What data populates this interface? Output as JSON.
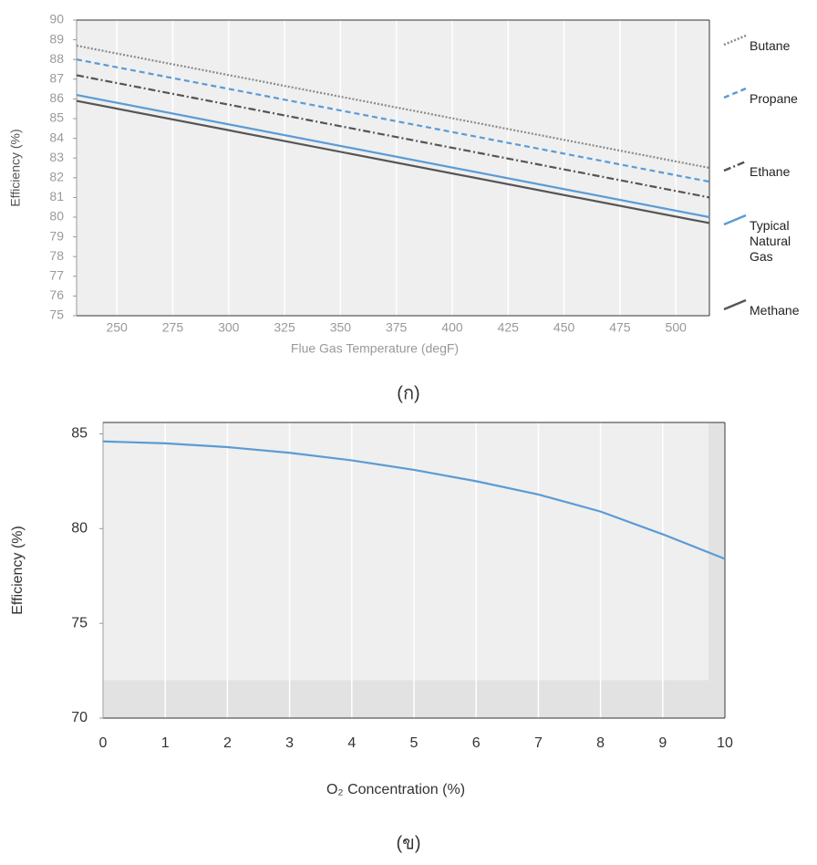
{
  "chart_data": [
    {
      "type": "line",
      "x_label": "Flue Gas Temperature (degF)",
      "y_label": "Efficiency (%)",
      "caption": "(ก)",
      "x": [
        232,
        515
      ],
      "xlim": [
        232,
        515
      ],
      "xticks": [
        250,
        275,
        300,
        325,
        350,
        375,
        400,
        425,
        450,
        475,
        500
      ],
      "ylim": [
        75,
        90
      ],
      "yticks": [
        75,
        76,
        77,
        78,
        79,
        80,
        81,
        82,
        83,
        84,
        85,
        86,
        87,
        88,
        89,
        90
      ],
      "grid": true,
      "legend": "right",
      "series": [
        {
          "name": "Butane",
          "color": "#8a8a8a",
          "style": "dotted",
          "values": [
            88.7,
            82.5
          ]
        },
        {
          "name": "Propane",
          "color": "#5b9bd5",
          "style": "dashed",
          "values": [
            88.0,
            81.8
          ]
        },
        {
          "name": "Ethane",
          "color": "#555555",
          "style": "dashdot",
          "values": [
            87.2,
            81.0
          ]
        },
        {
          "name": "Typical Natural Gas",
          "color": "#5b9bd5",
          "style": "solid",
          "values": [
            86.2,
            80.0
          ]
        },
        {
          "name": "Methane",
          "color": "#555555",
          "style": "solid",
          "values": [
            85.9,
            79.7
          ]
        }
      ]
    },
    {
      "type": "line",
      "x_label": "O₂ Concentration (%)",
      "y_label": "Efficiency (%)",
      "caption": "(ข)",
      "x": [
        0,
        1,
        2,
        3,
        4,
        5,
        6,
        7,
        8,
        9,
        10
      ],
      "xlim": [
        0,
        10
      ],
      "xticks": [
        0,
        1,
        2,
        3,
        4,
        5,
        6,
        7,
        8,
        9,
        10
      ],
      "ylim": [
        70,
        85.6
      ],
      "yticks": [
        70,
        75,
        80,
        85
      ],
      "grid": true,
      "series": [
        {
          "color": "#5b9bd5",
          "style": "solid",
          "values": [
            84.6,
            84.5,
            84.3,
            84.0,
            83.6,
            83.1,
            82.5,
            81.8,
            80.9,
            79.7,
            78.4
          ]
        }
      ]
    }
  ]
}
